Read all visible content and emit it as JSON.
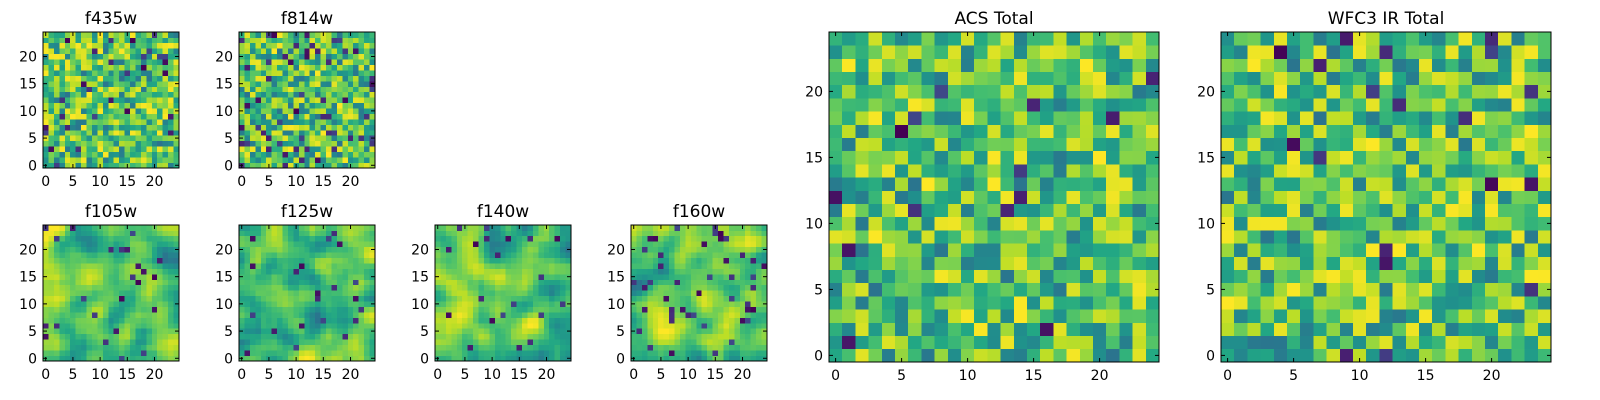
{
  "chart_data": [
    {
      "type": "heatmap",
      "title": "f435w",
      "xticks": [
        "0",
        "5",
        "10",
        "15",
        "20"
      ],
      "yticks": [
        "0",
        "5",
        "10",
        "15",
        "20"
      ],
      "xlim": [
        -0.5,
        24.5
      ],
      "ylim": [
        -0.5,
        24.5
      ],
      "grid_size": 25,
      "colormap": "viridis",
      "seed": 11,
      "smoothness": 0,
      "dark_fraction": 0.05
    },
    {
      "type": "heatmap",
      "title": "f814w",
      "xticks": [
        "0",
        "5",
        "10",
        "15",
        "20"
      ],
      "yticks": [
        "0",
        "5",
        "10",
        "15",
        "20"
      ],
      "xlim": [
        -0.5,
        24.5
      ],
      "ylim": [
        -0.5,
        24.5
      ],
      "grid_size": 25,
      "colormap": "viridis",
      "seed": 23,
      "smoothness": 0,
      "dark_fraction": 0.08
    },
    {
      "type": "heatmap",
      "title": "f105w",
      "xticks": [
        "0",
        "5",
        "10",
        "15",
        "20"
      ],
      "yticks": [
        "0",
        "5",
        "10",
        "15",
        "20"
      ],
      "xlim": [
        -0.5,
        24.5
      ],
      "ylim": [
        -0.5,
        24.5
      ],
      "grid_size": 25,
      "colormap": "viridis",
      "seed": 37,
      "smoothness": 2,
      "dark_fraction": 0.04
    },
    {
      "type": "heatmap",
      "title": "f125w",
      "xticks": [
        "0",
        "5",
        "10",
        "15",
        "20"
      ],
      "yticks": [
        "0",
        "5",
        "10",
        "15",
        "20"
      ],
      "xlim": [
        -0.5,
        24.5
      ],
      "ylim": [
        -0.5,
        24.5
      ],
      "grid_size": 25,
      "colormap": "viridis",
      "seed": 41,
      "smoothness": 2,
      "dark_fraction": 0.04
    },
    {
      "type": "heatmap",
      "title": "f140w",
      "xticks": [
        "0",
        "5",
        "10",
        "15",
        "20"
      ],
      "yticks": [
        "0",
        "5",
        "10",
        "15",
        "20"
      ],
      "xlim": [
        -0.5,
        24.5
      ],
      "ylim": [
        -0.5,
        24.5
      ],
      "grid_size": 25,
      "colormap": "viridis",
      "seed": 53,
      "smoothness": 2,
      "dark_fraction": 0.04
    },
    {
      "type": "heatmap",
      "title": "f160w",
      "xticks": [
        "0",
        "5",
        "10",
        "15",
        "20"
      ],
      "yticks": [
        "0",
        "5",
        "10",
        "15",
        "20"
      ],
      "xlim": [
        -0.5,
        24.5
      ],
      "ylim": [
        -0.5,
        24.5
      ],
      "grid_size": 25,
      "colormap": "viridis",
      "seed": 67,
      "smoothness": 2,
      "dark_fraction": 0.05
    },
    {
      "type": "heatmap",
      "title": "ACS Total",
      "xticks": [
        "0",
        "5",
        "10",
        "15",
        "20"
      ],
      "yticks": [
        "0",
        "5",
        "10",
        "15",
        "20"
      ],
      "xlim": [
        -0.5,
        24.5
      ],
      "ylim": [
        -0.5,
        24.5
      ],
      "grid_size": 25,
      "colormap": "viridis",
      "seed": 79,
      "smoothness": 0,
      "dark_fraction": 0.03
    },
    {
      "type": "heatmap",
      "title": "WFC3 IR Total",
      "xticks": [
        "0",
        "5",
        "10",
        "15",
        "20"
      ],
      "yticks": [
        "0",
        "5",
        "10",
        "15",
        "20"
      ],
      "xlim": [
        -0.5,
        24.5
      ],
      "ylim": [
        -0.5,
        24.5
      ],
      "grid_size": 25,
      "colormap": "viridis",
      "seed": 97,
      "smoothness": 0,
      "dark_fraction": 0.035
    }
  ]
}
